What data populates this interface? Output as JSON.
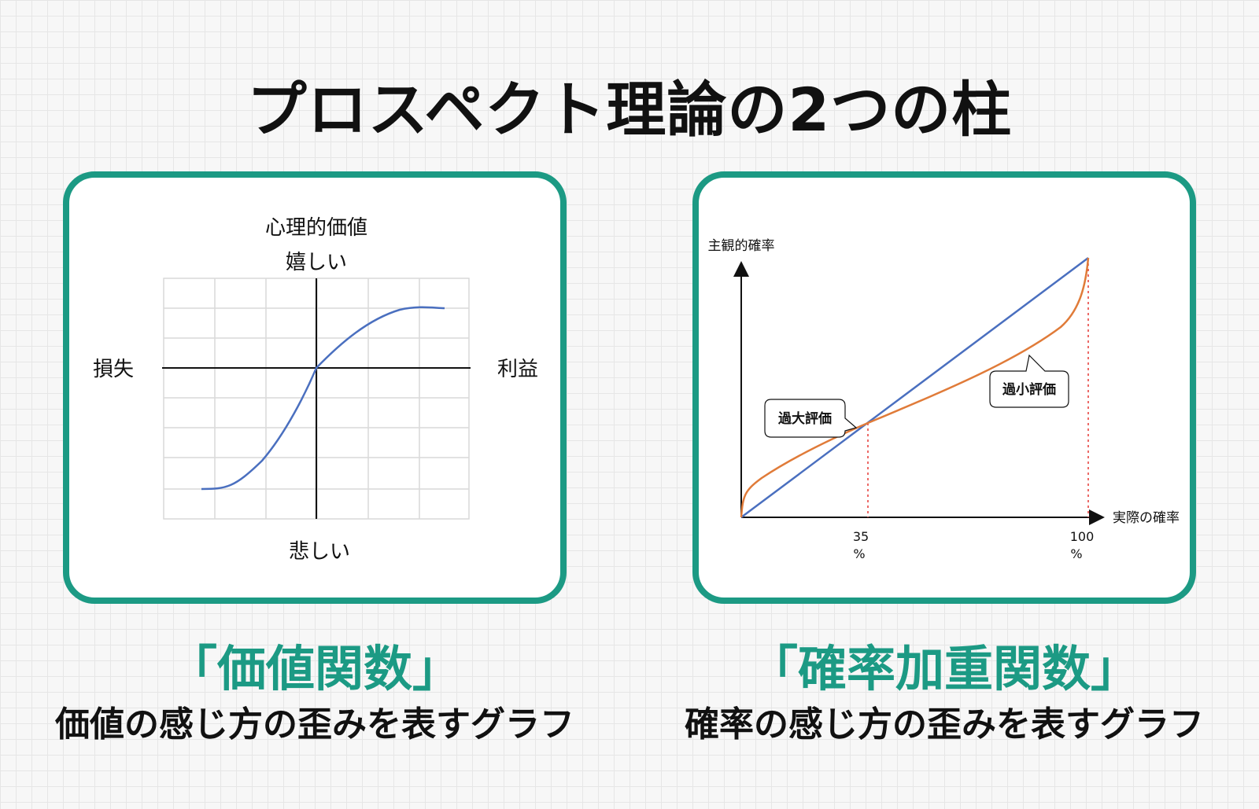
{
  "page": {
    "title": "プロスペクト理論の2つの柱"
  },
  "value_function": {
    "label_top_axis": "心理的価値",
    "label_top": "嬉しい",
    "label_bottom": "悲しい",
    "label_left": "損失",
    "label_right": "利益",
    "heading": "「価値関数」",
    "description": "価値の感じ方の歪みを表すグラフ"
  },
  "probability_weighting": {
    "y_axis_label": "主観的確率",
    "x_axis_label": "実際の確率",
    "callout_over": "過大評価",
    "callout_under": "過小評価",
    "tick_35": "35",
    "tick_35_unit": "%",
    "tick_100": "100",
    "tick_100_unit": "%",
    "heading": "「確率加重関数」",
    "description": "確率の感じ方の歪みを表すグラフ"
  },
  "colors": {
    "accent": "#1c9a84",
    "line_blue": "#4a6fbf",
    "line_orange": "#e07b39",
    "dotted_red": "#e53935"
  }
}
